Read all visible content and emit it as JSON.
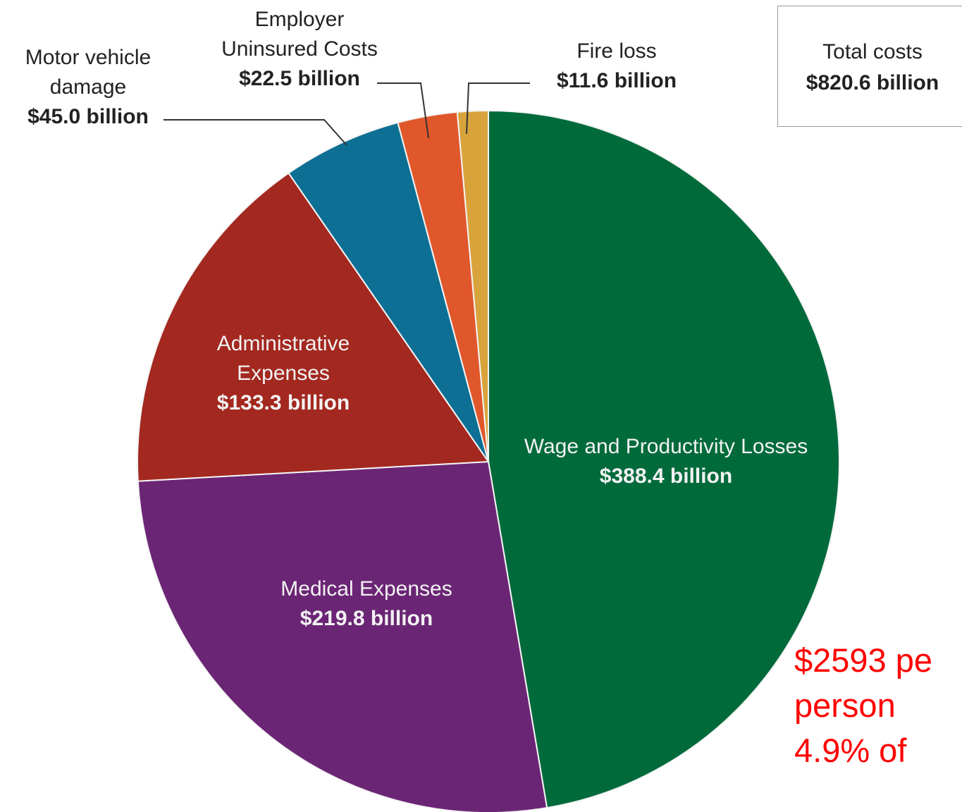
{
  "chart_data": {
    "type": "pie",
    "categories": [
      "Wage and Productivity Losses",
      "Medical Expenses",
      "Administrative Expenses",
      "Motor vehicle damage",
      "Employer Uninsured Costs",
      "Fire loss"
    ],
    "values": [
      388.4,
      219.8,
      133.3,
      45.0,
      22.5,
      11.6
    ],
    "value_labels": [
      "$388.4 billion",
      "$219.8 billion",
      "$133.3 billion",
      "$45.0 billion",
      "$22.5 billion",
      "$11.6 billion"
    ],
    "colors": [
      "#006a3b",
      "#6b2575",
      "#a3281f",
      "#0e6f94",
      "#e0572b",
      "#d9a33c"
    ],
    "total": {
      "label": "Total costs",
      "value": 820.6,
      "value_label": "$820.6 billion"
    },
    "annotation": [
      "$2593 pe",
      "person",
      "4.9% of"
    ]
  }
}
